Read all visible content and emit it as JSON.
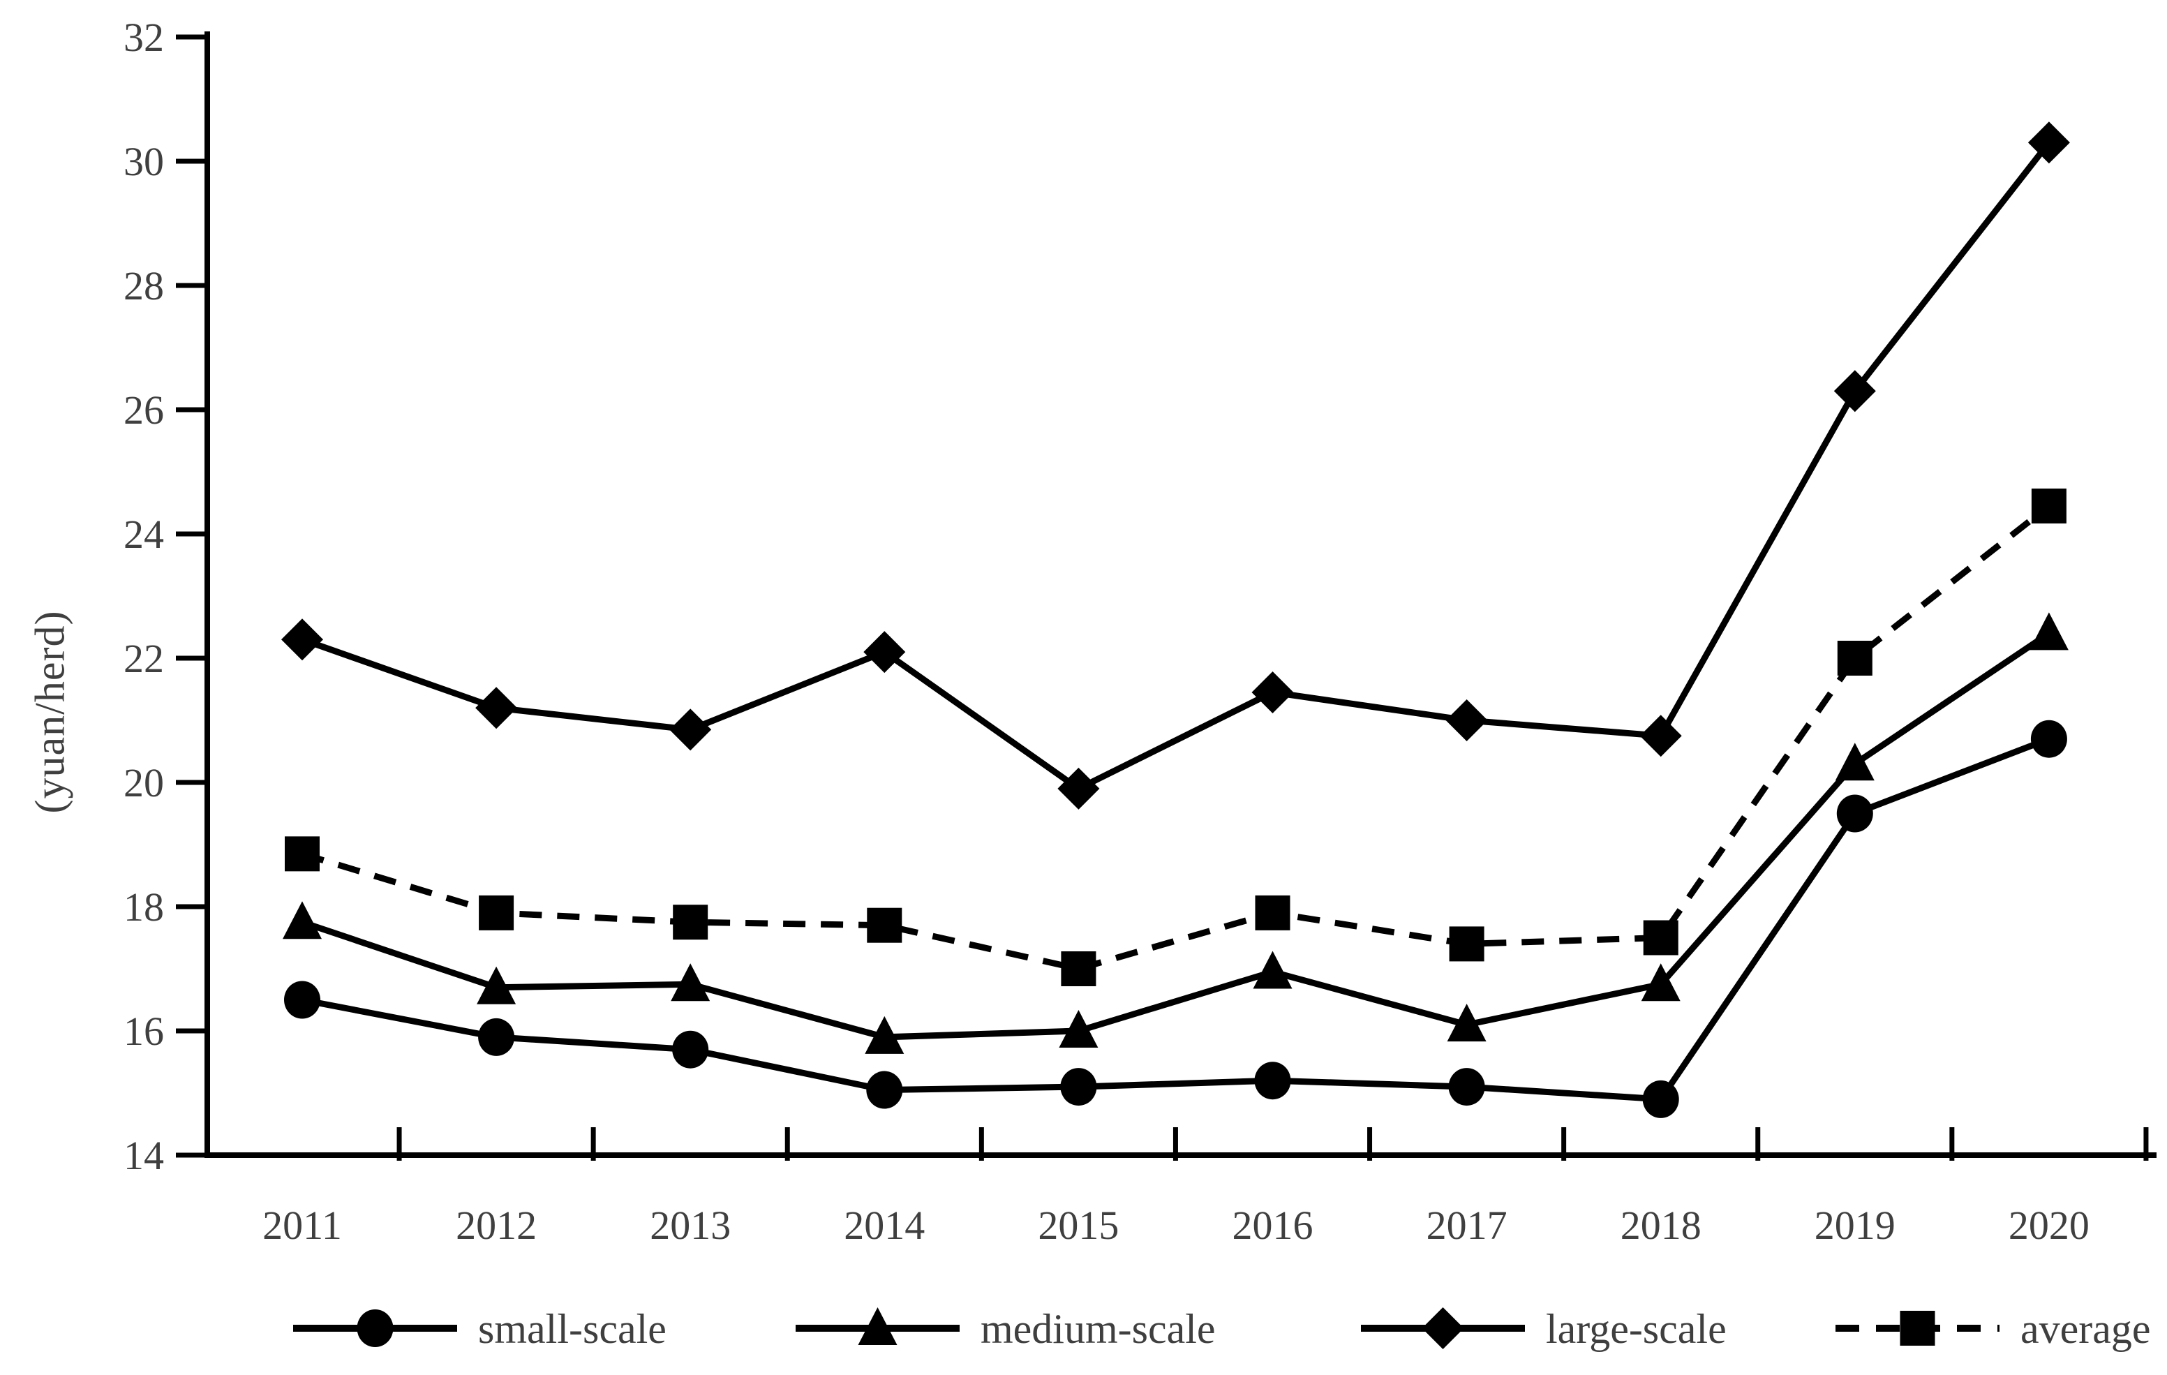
{
  "chart_data": {
    "type": "line",
    "title": "",
    "xlabel": "",
    "ylabel": "(yuan/herd)",
    "ylim": [
      14,
      32
    ],
    "ytick_step": 2,
    "ytick_labels": [
      "14",
      "16",
      "18",
      "20",
      "22",
      "24",
      "26",
      "28",
      "30",
      "32"
    ],
    "grid": false,
    "legend_position": "bottom",
    "categories": [
      "2011",
      "2012",
      "2013",
      "2014",
      "2015",
      "2016",
      "2017",
      "2018",
      "2019",
      "2020"
    ],
    "series": [
      {
        "name": "small-scale",
        "marker": "circle",
        "line": "solid",
        "values": [
          16.5,
          15.9,
          15.7,
          15.05,
          15.1,
          15.2,
          15.1,
          14.9,
          19.5,
          20.7
        ]
      },
      {
        "name": "medium-scale",
        "marker": "triangle",
        "line": "solid",
        "values": [
          17.75,
          16.7,
          16.75,
          15.9,
          16.0,
          16.95,
          16.1,
          16.75,
          20.3,
          22.4
        ]
      },
      {
        "name": "large-scale",
        "marker": "diamond",
        "line": "solid",
        "values": [
          22.3,
          21.2,
          20.85,
          22.1,
          19.9,
          21.45,
          21.0,
          20.75,
          26.3,
          30.3
        ]
      },
      {
        "name": "average",
        "marker": "square",
        "line": "dashed",
        "values": [
          18.85,
          17.9,
          17.75,
          17.7,
          17.0,
          17.9,
          17.4,
          17.5,
          22.0,
          24.45
        ]
      }
    ],
    "colors": {
      "line": "#000000",
      "marker": "#000000",
      "axis": "#000000",
      "tick_text": "#3f3f3f",
      "legend_text": "#3f3f3f"
    }
  }
}
